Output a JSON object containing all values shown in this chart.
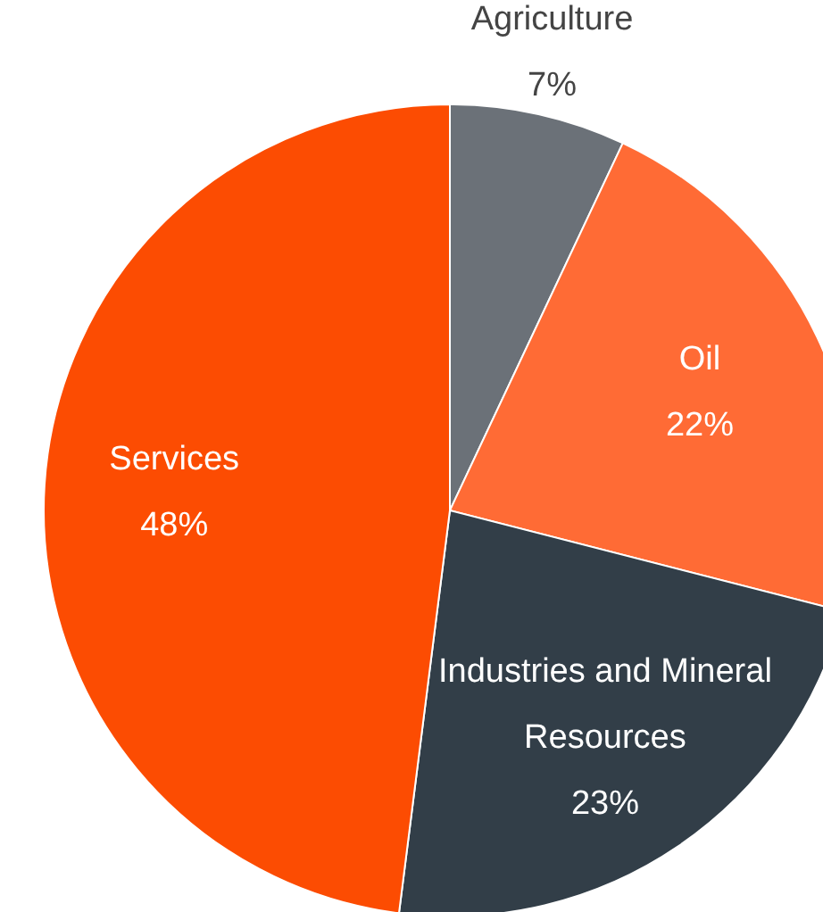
{
  "chart_data": {
    "type": "pie",
    "categories": [
      "Agriculture",
      "Oil",
      "Industries and Mineral Resources",
      "Services"
    ],
    "values": [
      7,
      22,
      23,
      48
    ],
    "value_labels": [
      "7%",
      "22%",
      "23%",
      "48%"
    ],
    "colors": [
      "#6b7178",
      "#ff6b35",
      "#323e48",
      "#fc4c02"
    ],
    "legend": false
  }
}
